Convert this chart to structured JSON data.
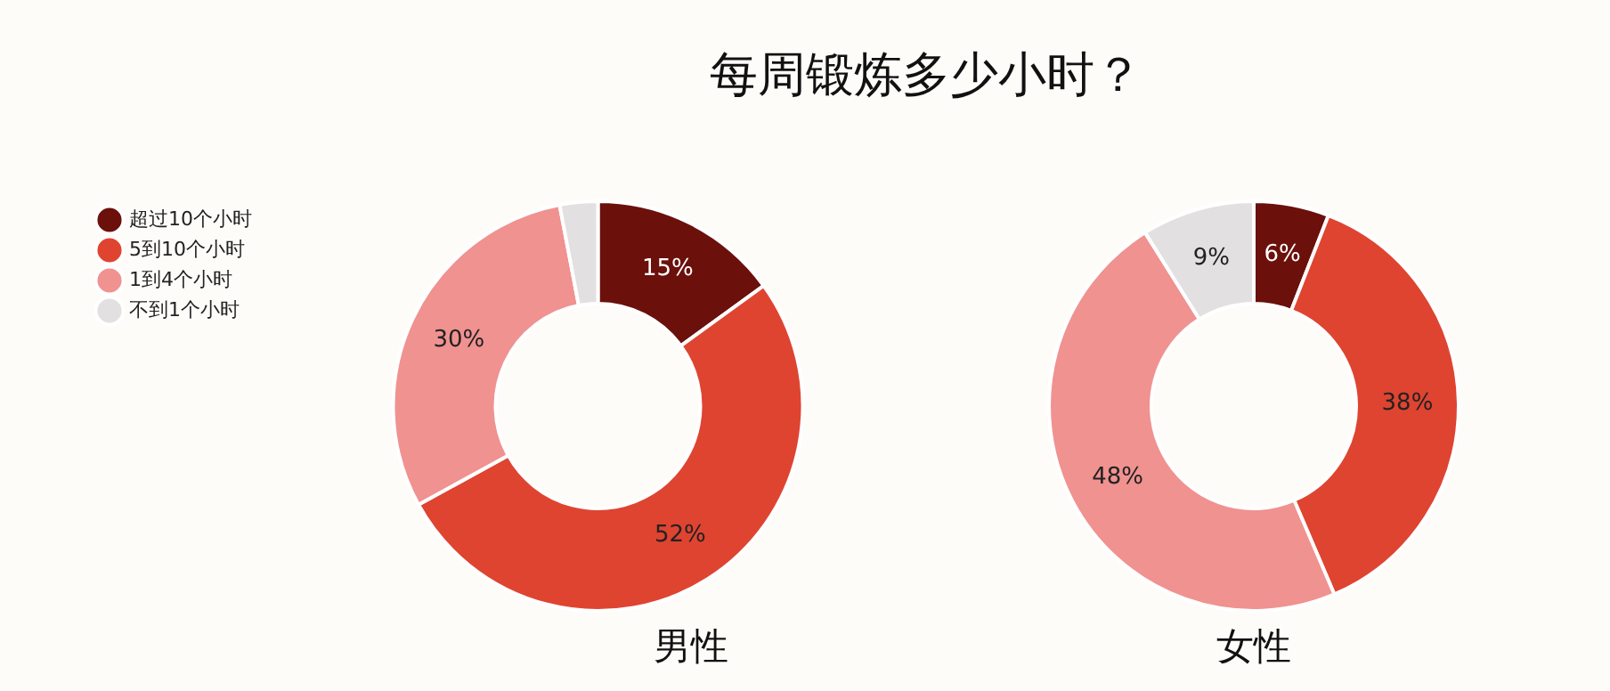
{
  "chart_data": [
    {
      "type": "donut",
      "title": "每周锻炼多少小时？",
      "xlabel": "男性",
      "legend": "top left",
      "categories": [
        "超过10个小时",
        "5到10个小时",
        "1到4个小时",
        "不到1个小时"
      ],
      "values": [
        15,
        52,
        30,
        3
      ],
      "colors": [
        "#6b100b",
        "#df4431",
        "#f09290",
        "#e2e0e0"
      ],
      "value_labels": [
        "15%",
        "52%",
        "30%",
        null
      ]
    },
    {
      "type": "donut",
      "xlabel": "女性",
      "categories": [
        null,
        null,
        null,
        null
      ],
      "values": [
        6,
        38,
        48,
        9
      ],
      "colors": [
        "#6b100b",
        "#df4431",
        "#f09290",
        "#e2e0e0"
      ],
      "value_labels": [
        "6%",
        "38%",
        "48%",
        "9%"
      ]
    }
  ]
}
